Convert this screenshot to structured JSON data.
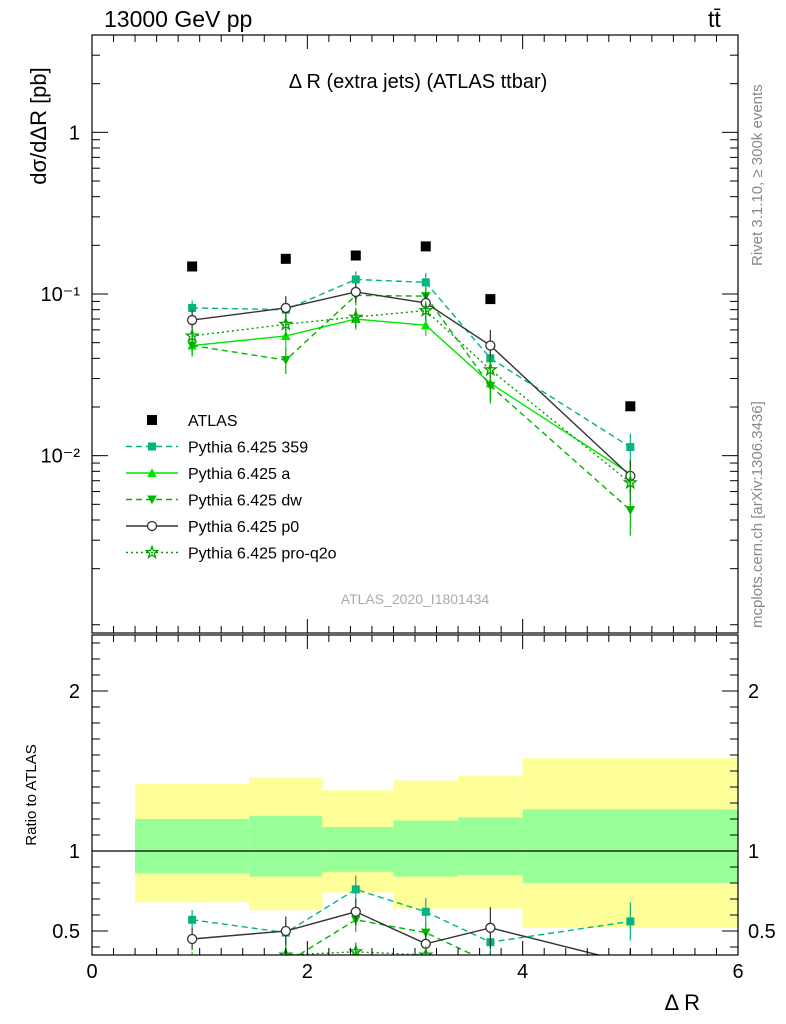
{
  "header": {
    "left": "13000 GeV pp",
    "right": "tt̄"
  },
  "side_labels": {
    "rivet": "Rivet 3.1.10, ≥ 300k events",
    "mcplots": "mcplots.cern.ch [arXiv:1306.3436]"
  },
  "watermark": "ATLAS_2020_I1801434",
  "chart_data": {
    "type": "scatter",
    "title": "Δ R (extra jets) (ATLAS ttbar)",
    "ylabel_main": "dσ/dΔR [pb]",
    "ylabel_ratio": "Ratio to ATLAS",
    "xlabel": "Δ R",
    "xlim": [
      0,
      6
    ],
    "ylim_main": [
      0.0008,
      4
    ],
    "yscale_main": "log",
    "ylim_ratio": [
      0.35,
      2.35
    ],
    "x_ticks": [
      "0",
      "2",
      "4",
      "6"
    ],
    "y_ticks_main": [
      "10⁻²",
      "10⁻¹",
      "1"
    ],
    "y_ticks_ratio": [
      "0.5",
      "1",
      "2"
    ],
    "legend_position": "center-left",
    "data": {
      "name": "ATLAS",
      "x": [
        0.93,
        1.8,
        2.45,
        3.1,
        3.7,
        5.0
      ],
      "y": [
        0.148,
        0.165,
        0.173,
        0.197,
        0.093,
        0.0202
      ],
      "bins": [
        [
          0.4,
          1.46
        ],
        [
          1.46,
          2.14
        ],
        [
          2.14,
          2.8
        ],
        [
          2.8,
          3.4
        ],
        [
          3.4,
          4.0
        ],
        [
          4.0,
          6.0
        ]
      ]
    },
    "ratio_bands": {
      "inner": [
        [
          0.86,
          1.2
        ],
        [
          0.84,
          1.22
        ],
        [
          0.87,
          1.15
        ],
        [
          0.84,
          1.19
        ],
        [
          0.85,
          1.21
        ],
        [
          0.8,
          1.26
        ]
      ],
      "outer": [
        [
          0.68,
          1.42
        ],
        [
          0.63,
          1.46
        ],
        [
          0.74,
          1.38
        ],
        [
          0.64,
          1.44
        ],
        [
          0.64,
          1.47
        ],
        [
          0.52,
          1.58
        ]
      ]
    },
    "series": [
      {
        "name": "Pythia 6.425 359",
        "color": "#00b57f",
        "marker": "square",
        "line": "dashed",
        "x": [
          0.93,
          1.8,
          2.45,
          3.1,
          3.7,
          5.0
        ],
        "y": [
          0.082,
          0.08,
          0.123,
          0.118,
          0.04,
          0.0113
        ],
        "err": [
          0.009,
          0.013,
          0.015,
          0.017,
          0.009,
          0.0024
        ],
        "ratio": [
          0.57,
          0.49,
          0.76,
          0.62,
          0.43,
          0.56
        ]
      },
      {
        "name": "Pythia 6.425 a",
        "color": "#00e600",
        "marker": "triangle-up",
        "line": "solid",
        "x": [
          0.93,
          1.8,
          2.45,
          3.1,
          3.7,
          5.0
        ],
        "y": [
          0.048,
          0.055,
          0.07,
          0.064,
          0.028,
          0.0077
        ],
        "err": [
          0.006,
          0.01,
          0.01,
          0.009,
          0.006,
          0.0018
        ],
        "ratio": [
          0.33,
          0.33,
          0.35,
          0.33,
          0.3,
          0.3
        ]
      },
      {
        "name": "Pythia 6.425 dw",
        "color": "#00b500",
        "marker": "triangle-down",
        "line": "dashed",
        "x": [
          0.93,
          1.8,
          2.45,
          3.1,
          3.7,
          5.0
        ],
        "y": [
          0.048,
          0.039,
          0.098,
          0.097,
          0.027,
          0.0046
        ],
        "err": [
          0.007,
          0.007,
          0.013,
          0.012,
          0.006,
          0.0014
        ],
        "ratio": [
          0.3,
          0.3,
          0.57,
          0.49,
          0.3,
          0.3
        ]
      },
      {
        "name": "Pythia 6.425 p0",
        "color": "#333333",
        "marker": "circle-open",
        "line": "solid",
        "x": [
          0.93,
          1.8,
          2.45,
          3.1,
          3.7,
          5.0
        ],
        "y": [
          0.069,
          0.082,
          0.103,
          0.088,
          0.048,
          0.0075
        ],
        "err": [
          0.01,
          0.015,
          0.014,
          0.013,
          0.012,
          0.0018
        ],
        "ratio": [
          0.45,
          0.5,
          0.62,
          0.42,
          0.52,
          0.3
        ]
      },
      {
        "name": "Pythia 6.425 pro-q2o",
        "color": "#00a000",
        "marker": "star",
        "line": "dotted",
        "x": [
          0.93,
          1.8,
          2.45,
          3.1,
          3.7,
          5.0
        ],
        "y": [
          0.055,
          0.065,
          0.072,
          0.079,
          0.034,
          0.0068
        ],
        "err": [
          0.007,
          0.011,
          0.01,
          0.011,
          0.007,
          0.0016
        ],
        "ratio": [
          0.3,
          0.35,
          0.37,
          0.35,
          0.3,
          0.3
        ]
      }
    ]
  }
}
